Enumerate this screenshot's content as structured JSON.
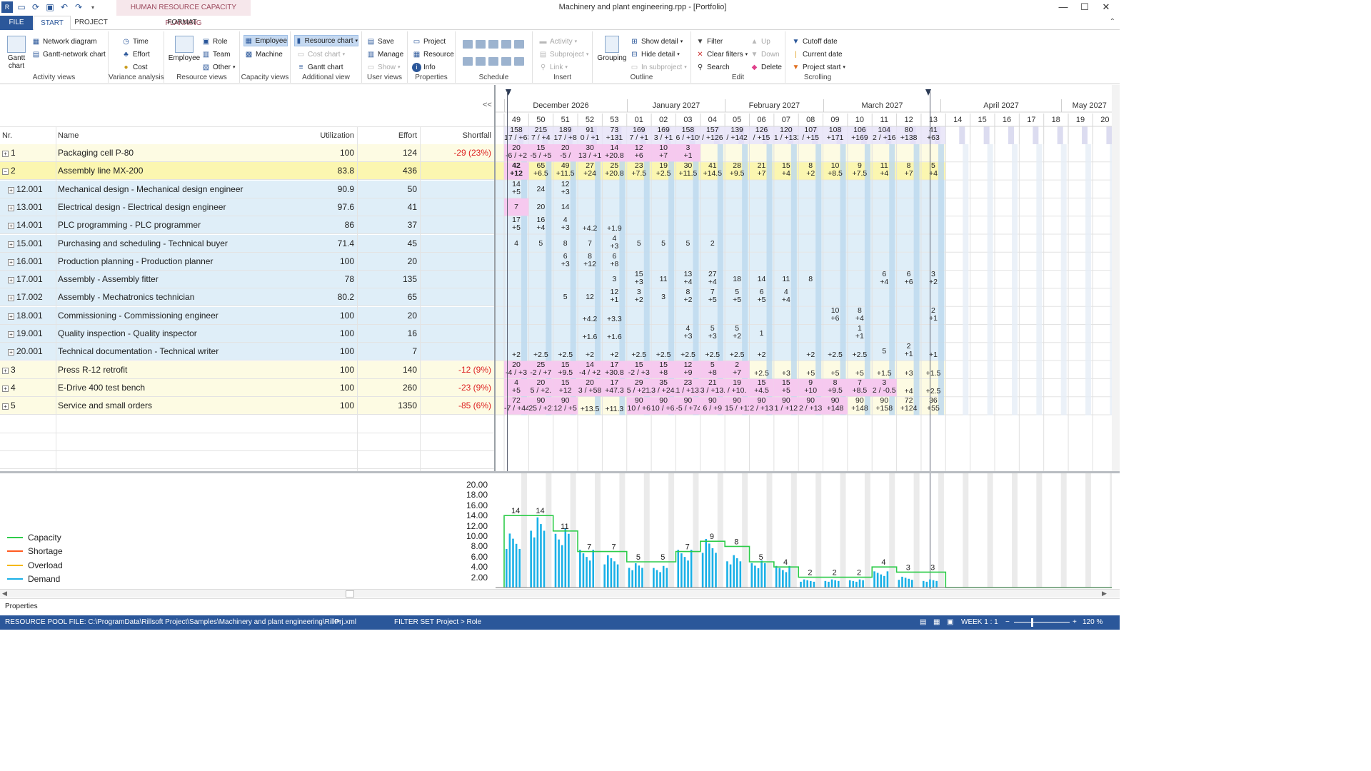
{
  "window": {
    "title": "Machinery and plant engineering.rpp - [Portfolio]",
    "context_tab_title": "HUMAN RESOURCE CAPACITY PLANNING"
  },
  "tabs": {
    "file": "FILE",
    "start": "START",
    "project": "PROJECT",
    "format": "FORMAT"
  },
  "ribbon": {
    "activity_views": {
      "label": "Activity views",
      "gantt": "Gantt chart",
      "network": "Network diagram",
      "gantt_network": "Gantt-network chart"
    },
    "variance": {
      "label": "Variance analysis",
      "time": "Time",
      "effort": "Effort",
      "cost": "Cost"
    },
    "resource_views": {
      "label": "Resource views",
      "employee": "Employee",
      "role": "Role",
      "team": "Team",
      "other": "Other"
    },
    "capacity_views": {
      "label": "Capacity views",
      "employee": "Employee",
      "machine": "Machine"
    },
    "additional": {
      "label": "Additional view",
      "resource_chart": "Resource chart",
      "cost_chart": "Cost chart",
      "gantt_chart": "Gantt chart"
    },
    "user_views": {
      "label": "User views",
      "save": "Save",
      "manage": "Manage",
      "show": "Show"
    },
    "properties": {
      "label": "Properties",
      "project": "Project",
      "resource": "Resource",
      "info": "Info"
    },
    "schedule": {
      "label": "Schedule"
    },
    "insert": {
      "label": "Insert",
      "activity": "Activity",
      "subproject": "Subproject",
      "link": "Link"
    },
    "outline": {
      "label": "Outline",
      "grouping": "Grouping",
      "show_detail": "Show detail",
      "hide_detail": "Hide detail",
      "in_subproject": "In subproject"
    },
    "edit": {
      "label": "Edit",
      "filter": "Filter",
      "clear_filters": "Clear filters",
      "search": "Search",
      "up": "Up",
      "down": "Down",
      "delete": "Delete"
    },
    "scrolling": {
      "label": "Scrolling",
      "cutoff": "Cutoff date",
      "current": "Current date",
      "project_start": "Project start"
    }
  },
  "table": {
    "headers": {
      "nr": "Nr.",
      "name": "Name",
      "utilization": "Utilization",
      "effort": "Effort",
      "shortfall": "Shortfall"
    },
    "collapse": "<<",
    "rows": [
      {
        "nr": "1",
        "name": "Packaging cell P-80",
        "utilization": "100",
        "effort": "124",
        "shortfall": "-29 (23%)",
        "kind": "proj"
      },
      {
        "nr": "2",
        "name": "Assembly line MX-200",
        "utilization": "83.8",
        "effort": "436",
        "shortfall": "",
        "kind": "projsel"
      },
      {
        "nr": "12.001",
        "name": "Mechanical design - Mechanical design engineer",
        "utilization": "90.9",
        "effort": "50",
        "shortfall": "",
        "kind": "task"
      },
      {
        "nr": "13.001",
        "name": "Electrical design - Electrical design engineer",
        "utilization": "97.6",
        "effort": "41",
        "shortfall": "",
        "kind": "task"
      },
      {
        "nr": "14.001",
        "name": "PLC programming - PLC programmer",
        "utilization": "86",
        "effort": "37",
        "shortfall": "",
        "kind": "task"
      },
      {
        "nr": "15.001",
        "name": "Purchasing and scheduling - Technical buyer",
        "utilization": "71.4",
        "effort": "45",
        "shortfall": "",
        "kind": "task"
      },
      {
        "nr": "16.001",
        "name": "Production planning - Production planner",
        "utilization": "100",
        "effort": "20",
        "shortfall": "",
        "kind": "task"
      },
      {
        "nr": "17.001",
        "name": "Assembly - Assembly fitter",
        "utilization": "78",
        "effort": "135",
        "shortfall": "",
        "kind": "task"
      },
      {
        "nr": "17.002",
        "name": "Assembly - Mechatronics technician",
        "utilization": "80.2",
        "effort": "65",
        "shortfall": "",
        "kind": "task"
      },
      {
        "nr": "18.001",
        "name": "Commissioning - Commissioning engineer",
        "utilization": "100",
        "effort": "20",
        "shortfall": "",
        "kind": "task"
      },
      {
        "nr": "19.001",
        "name": "Quality inspection - Quality inspector",
        "utilization": "100",
        "effort": "16",
        "shortfall": "",
        "kind": "task"
      },
      {
        "nr": "20.001",
        "name": "Technical documentation - Technical writer",
        "utilization": "100",
        "effort": "7",
        "shortfall": "",
        "kind": "task"
      },
      {
        "nr": "3",
        "name": "Press R-12 retrofit",
        "utilization": "100",
        "effort": "140",
        "shortfall": "-12 (9%)",
        "kind": "proj"
      },
      {
        "nr": "4",
        "name": "E-Drive 400 test bench",
        "utilization": "100",
        "effort": "260",
        "shortfall": "-23 (9%)",
        "kind": "proj"
      },
      {
        "nr": "5",
        "name": "Service and small orders",
        "utilization": "100",
        "effort": "1350",
        "shortfall": "-85 (6%)",
        "kind": "proj"
      }
    ]
  },
  "timeline": {
    "months": [
      "December 2026",
      "January 2027",
      "February 2027",
      "March 2027",
      "April 2027",
      "May 2027"
    ],
    "weeks": [
      "49",
      "50",
      "51",
      "52",
      "53",
      "01",
      "02",
      "03",
      "04",
      "05",
      "06",
      "07",
      "08",
      "09",
      "10",
      "11",
      "12",
      "13",
      "14",
      "15",
      "16",
      "17",
      "18",
      "19",
      "20"
    ],
    "summary": [
      [
        "158",
        "17 / +63"
      ],
      [
        "215",
        "7 / +4"
      ],
      [
        "189",
        "17 / +8"
      ],
      [
        "91",
        "0 / +1"
      ],
      [
        "73",
        "+131"
      ],
      [
        "169",
        "7 / +1"
      ],
      [
        "169",
        "3 / +1"
      ],
      [
        "158",
        "6 / +109"
      ],
      [
        "157",
        "/ +126"
      ],
      [
        "139",
        "/ +142"
      ],
      [
        "126",
        "/ +15"
      ],
      [
        "120",
        "1 / +132"
      ],
      [
        "107",
        "/ +15"
      ],
      [
        "108",
        "+171"
      ],
      [
        "106",
        "+169"
      ],
      [
        "104",
        "2 / +16"
      ],
      [
        "80",
        "+138"
      ],
      [
        "41",
        "+63"
      ]
    ],
    "grid": [
      [
        [
          "20",
          "-6 / +2"
        ],
        [
          "15",
          "-5 / +5"
        ],
        [
          "20",
          "-5 / "
        ],
        [
          "30",
          "13 / +1"
        ],
        [
          "14",
          "+20.8"
        ],
        [
          "12",
          "+6"
        ],
        [
          "10",
          "+7"
        ],
        [
          "3",
          "+1"
        ]
      ],
      [
        [
          "42",
          "+12"
        ],
        [
          "65",
          "+6.5"
        ],
        [
          "49",
          "+11.5"
        ],
        [
          "27",
          "+24"
        ],
        [
          "25",
          "+20.8"
        ],
        [
          "23",
          "+7.5"
        ],
        [
          "19",
          "+2.5"
        ],
        [
          "30",
          "+11.5"
        ],
        [
          "41",
          "+14.5"
        ],
        [
          "28",
          "+9.5"
        ],
        [
          "21",
          "+7"
        ],
        [
          "15",
          "+4"
        ],
        [
          "8",
          "+2"
        ],
        [
          "10",
          "+8.5"
        ],
        [
          "9",
          "+7.5"
        ],
        [
          "11",
          "+4"
        ],
        [
          "8",
          "+7"
        ],
        [
          "5",
          "+4"
        ]
      ],
      [
        [
          "14",
          "+5"
        ],
        [
          "24",
          ""
        ],
        [
          "12",
          "+3"
        ]
      ],
      [
        [
          "7",
          ""
        ],
        [
          "20",
          ""
        ],
        [
          "14",
          ""
        ]
      ],
      [
        [
          "17",
          "+5"
        ],
        [
          "16",
          "+4"
        ],
        [
          "4",
          "+3"
        ],
        [
          "",
          "+4.2"
        ],
        [
          "",
          "+1.9"
        ]
      ],
      [
        [
          "4",
          ""
        ],
        [
          "5",
          ""
        ],
        [
          "8",
          ""
        ],
        [
          "7",
          ""
        ],
        [
          "4",
          "+3"
        ],
        [
          "5",
          ""
        ],
        [
          "5",
          ""
        ],
        [
          "5",
          ""
        ],
        [
          "2",
          ""
        ]
      ],
      [
        [
          "",
          ""
        ],
        [
          "",
          ""
        ],
        [
          "6",
          "+3"
        ],
        [
          "8",
          "+12"
        ],
        [
          "6",
          "+8"
        ]
      ],
      [
        [
          "",
          ""
        ],
        [
          "",
          ""
        ],
        [
          "",
          ""
        ],
        [
          "",
          ""
        ],
        [
          "3",
          ""
        ],
        [
          "15",
          "+3"
        ],
        [
          "11",
          ""
        ],
        [
          "13",
          "+4"
        ],
        [
          "27",
          "+4"
        ],
        [
          "18",
          ""
        ],
        [
          "14",
          ""
        ],
        [
          "11",
          ""
        ],
        [
          "8",
          ""
        ],
        [
          "",
          ""
        ],
        [
          "",
          ""
        ],
        [
          "6",
          "+4"
        ],
        [
          "6",
          "+6"
        ],
        [
          "3",
          "+2"
        ]
      ],
      [
        [
          "",
          ""
        ],
        [
          "",
          ""
        ],
        [
          "5",
          ""
        ],
        [
          "12",
          ""
        ],
        [
          "12",
          "+1"
        ],
        [
          "3",
          "+2"
        ],
        [
          "3",
          ""
        ],
        [
          "8",
          "+2"
        ],
        [
          "7",
          "+5"
        ],
        [
          "5",
          "+5"
        ],
        [
          "6",
          "+5"
        ],
        [
          "4",
          "+4"
        ]
      ],
      [
        [
          "",
          ""
        ],
        [
          "",
          ""
        ],
        [
          "",
          ""
        ],
        [
          "",
          "+4.2"
        ],
        [
          "",
          "+3.3"
        ],
        [
          "",
          ""
        ],
        [
          "",
          ""
        ],
        [
          "",
          ""
        ],
        [
          "",
          ""
        ],
        [
          "",
          ""
        ],
        [
          "",
          ""
        ],
        [
          "",
          ""
        ],
        [
          "",
          ""
        ],
        [
          "10",
          "+6"
        ],
        [
          "8",
          "+4"
        ],
        [
          "",
          ""
        ],
        [
          "",
          ""
        ],
        [
          "2",
          "+1"
        ]
      ],
      [
        [
          "",
          ""
        ],
        [
          "",
          ""
        ],
        [
          "",
          ""
        ],
        [
          "",
          "+1.6"
        ],
        [
          "",
          "+1.6"
        ],
        [
          "",
          ""
        ],
        [
          "",
          ""
        ],
        [
          "4",
          "+3"
        ],
        [
          "5",
          "+3"
        ],
        [
          "5",
          "+2"
        ],
        [
          "1",
          ""
        ],
        [
          "",
          ""
        ],
        [
          "",
          ""
        ],
        [
          "",
          ""
        ],
        [
          "1",
          "+1"
        ]
      ],
      [
        [
          "",
          "+2"
        ],
        [
          "",
          "+2.5"
        ],
        [
          "",
          "+2.5"
        ],
        [
          "",
          "+2"
        ],
        [
          "",
          "+2"
        ],
        [
          "",
          "+2.5"
        ],
        [
          "",
          "+2.5"
        ],
        [
          "",
          "+2.5"
        ],
        [
          "",
          "+2.5"
        ],
        [
          "",
          "+2.5"
        ],
        [
          "",
          "+2"
        ],
        [
          "",
          ""
        ],
        [
          "",
          "+2"
        ],
        [
          "",
          "+2.5"
        ],
        [
          "",
          "+2.5"
        ],
        [
          "5",
          ""
        ],
        [
          "2",
          "+1"
        ],
        [
          "",
          "+1"
        ]
      ],
      [
        [
          "20",
          "-4 / +3"
        ],
        [
          "25",
          "-2 / +7"
        ],
        [
          "15",
          "+9.5"
        ],
        [
          "14",
          "-4 / +2"
        ],
        [
          "17",
          "+30.8"
        ],
        [
          "15",
          "-2 / +3"
        ],
        [
          "15",
          "+8"
        ],
        [
          "12",
          "+9"
        ],
        [
          "5",
          "+8"
        ],
        [
          "2",
          "+7"
        ],
        [
          "",
          "+2.5"
        ],
        [
          "",
          "+3"
        ],
        [
          "",
          "+5"
        ],
        [
          "",
          "+5"
        ],
        [
          "",
          "+5"
        ],
        [
          "",
          "+1.5"
        ],
        [
          "",
          "+3"
        ],
        [
          "",
          "+1.5"
        ]
      ],
      [
        [
          "4",
          "+5"
        ],
        [
          "20",
          "5 / +2."
        ],
        [
          "15",
          "+12"
        ],
        [
          "20",
          "3 / +58"
        ],
        [
          "17",
          "+47.3"
        ],
        [
          "29",
          "5 / +21."
        ],
        [
          "35",
          "3 / +24."
        ],
        [
          "23",
          "1 / +13."
        ],
        [
          "21",
          "3 / +13."
        ],
        [
          "19",
          "/ +10."
        ],
        [
          "15",
          "+4.5"
        ],
        [
          "15",
          "+5"
        ],
        [
          "9",
          "+10"
        ],
        [
          "8",
          "+9.5"
        ],
        [
          "7",
          "+8.5"
        ],
        [
          "3",
          "2 / -0.5"
        ],
        [
          "",
          "+4"
        ],
        [
          "",
          "+2.5"
        ]
      ],
      [
        [
          "72",
          "-7 / +44"
        ],
        [
          "90",
          "25 / +21"
        ],
        [
          "90",
          "12 / +5"
        ],
        [
          "",
          "+13.5"
        ],
        [
          "",
          "+11.3"
        ],
        [
          "90",
          "10 / +6"
        ],
        [
          "90",
          "10 / +6."
        ],
        [
          "90",
          "-5 / +74"
        ],
        [
          "90",
          "6 / +9"
        ],
        [
          "90",
          "15 / +11"
        ],
        [
          "90",
          "2 / +13"
        ],
        [
          "90",
          "1 / +12"
        ],
        [
          "90",
          "2 / +13"
        ],
        [
          "90",
          "+148"
        ],
        [
          "90",
          "+148"
        ],
        [
          "90",
          "+158"
        ],
        [
          "72",
          "+124"
        ],
        [
          "36",
          "+55"
        ]
      ]
    ]
  },
  "chart_data": {
    "type": "bar",
    "legend": [
      "Capacity",
      "Shortage",
      "Overload",
      "Demand"
    ],
    "legend_colors": [
      "#2ecc4a",
      "#ff5a1f",
      "#f5b800",
      "#1ab0e6"
    ],
    "ylim": [
      0,
      20
    ],
    "yticks": [
      "20.00",
      "18.00",
      "16.00",
      "14.00",
      "12.00",
      "10.00",
      "8.00",
      "6.00",
      "4.00",
      "2.00"
    ],
    "weeks": [
      "49",
      "50",
      "51",
      "52",
      "53",
      "01",
      "02",
      "03",
      "04",
      "05",
      "06",
      "07",
      "08",
      "09",
      "10",
      "11",
      "12",
      "13",
      "14",
      "15",
      "16",
      "17",
      "18",
      "19",
      "20"
    ],
    "capacity": [
      14,
      14,
      11,
      7,
      7,
      5,
      5,
      7,
      9,
      8,
      5,
      4,
      2,
      2,
      2,
      4,
      3,
      3,
      0,
      0,
      0,
      0,
      0,
      0,
      0
    ],
    "capacity_labels": [
      "14",
      "14",
      "11",
      "7",
      "7",
      "5",
      "5",
      "7",
      "9",
      "8",
      "5",
      "4",
      "2",
      "2",
      "2",
      "4",
      "3",
      "3"
    ],
    "demand_avg": [
      10,
      13,
      11,
      7,
      6,
      4.5,
      4,
      7,
      9,
      6,
      5,
      4,
      1.5,
      1.5,
      1.5,
      3,
      2,
      1.5,
      0,
      0,
      0,
      0,
      0,
      0,
      0
    ]
  },
  "status": {
    "properties": "Properties",
    "pool": "RESOURCE POOL FILE: C:\\ProgramData\\Rillsoft Project\\Samples\\Machinery and plant engineering\\RillPrj.xml",
    "filter": "FILTER SET",
    "path": "Project > Role",
    "week": "WEEK 1 : 1",
    "zoom": "120 %"
  }
}
